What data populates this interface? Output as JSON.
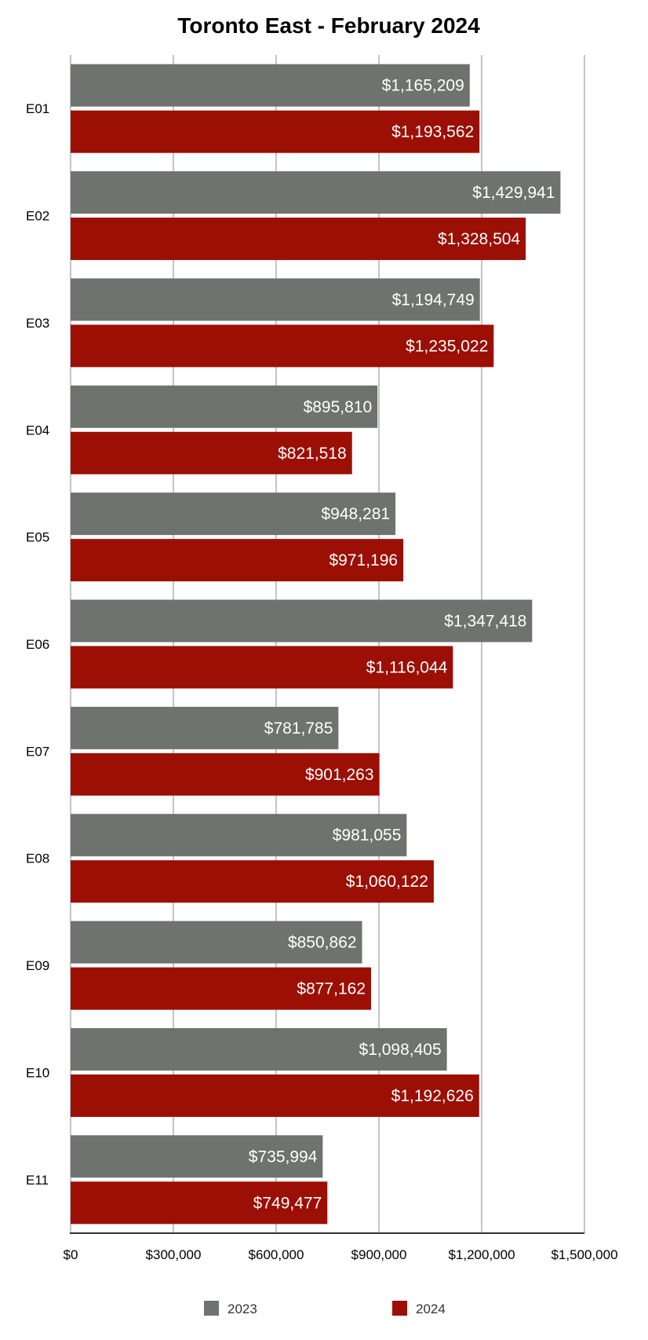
{
  "chart_data": {
    "type": "bar",
    "orientation": "horizontal",
    "title": "Toronto East - February 2024",
    "xlabel": "",
    "ylabel": "",
    "categories": [
      "E01",
      "E02",
      "E03",
      "E04",
      "E05",
      "E06",
      "E07",
      "E08",
      "E09",
      "E10",
      "E11"
    ],
    "series": [
      {
        "name": "2023",
        "color": "#6f7370",
        "values": [
          1165209,
          1429941,
          1194749,
          895810,
          948281,
          1347418,
          781785,
          981055,
          850862,
          1098405,
          735994
        ],
        "labels": [
          "$1,165,209",
          "$1,429,941",
          "$1,194,749",
          "$895,810",
          "$948,281",
          "$1,347,418",
          "$781,785",
          "$981,055",
          "$850,862",
          "$1,098,405",
          "$735,994"
        ]
      },
      {
        "name": "2024",
        "color": "#9b0f05",
        "values": [
          1193562,
          1328504,
          1235022,
          821518,
          971196,
          1116044,
          901263,
          1060122,
          877162,
          1192626,
          749477
        ],
        "labels": [
          "$1,193,562",
          "$1,328,504",
          "$1,235,022",
          "$821,518",
          "$971,196",
          "$1,116,044",
          "$901,263",
          "$1,060,122",
          "$877,162",
          "$1,192,626",
          "$749,477"
        ]
      }
    ],
    "xlim": [
      0,
      1500000
    ],
    "ticks": [
      0,
      300000,
      600000,
      900000,
      1200000,
      1500000
    ],
    "tick_labels": [
      "$0",
      "$300,000",
      "$600,000",
      "$900,000",
      "$1,200,000",
      "$1,500,000"
    ],
    "grid": true,
    "gridline_color": "#c4c4c4",
    "legend_position": "bottom"
  }
}
